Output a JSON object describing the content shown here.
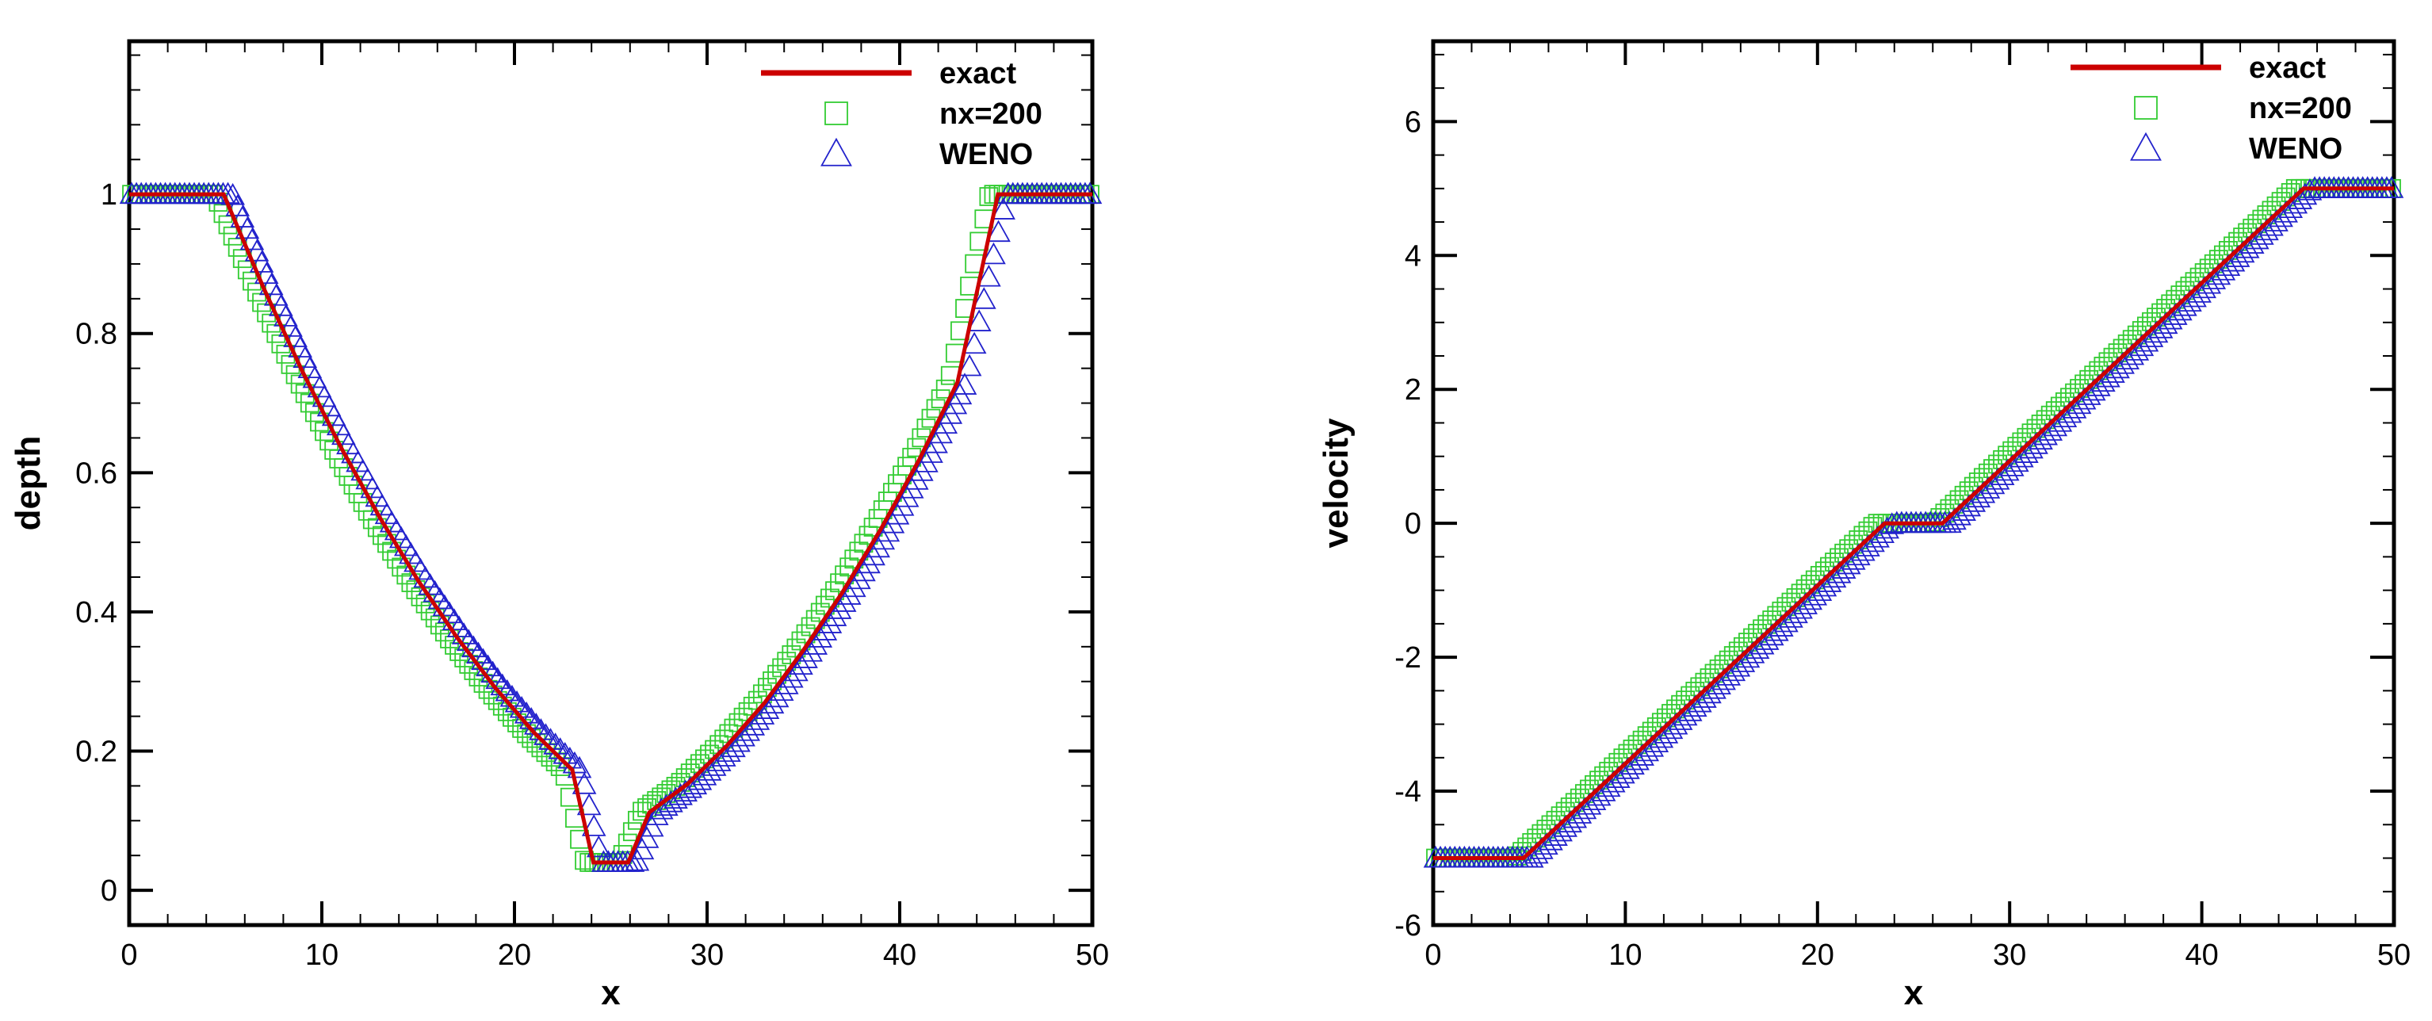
{
  "chart_data": [
    {
      "type": "line",
      "title": "",
      "xlabel": "x",
      "ylabel": "depth",
      "xlim": [
        0,
        50
      ],
      "ylim": [
        -0.05,
        1.22
      ],
      "xticks": [
        0,
        10,
        20,
        30,
        40,
        50
      ],
      "xtick_labels": [
        "0",
        "10",
        "20",
        "30",
        "40",
        "50"
      ],
      "yticks": [
        0,
        0.2,
        0.4,
        0.6,
        0.8,
        1
      ],
      "ytick_labels": [
        "0",
        "0.2",
        "0.4",
        "0.6",
        "0.8",
        "1"
      ],
      "yminor": 0.05,
      "xminor": 2,
      "grid": false,
      "legend": [
        "exact",
        "nx=200",
        "WENO"
      ],
      "series": [
        {
          "name": "exact",
          "marker": "line",
          "color": "#cc0000",
          "x": [
            0,
            4.9,
            7,
            9,
            11,
            13,
            15,
            17,
            19,
            21,
            23,
            24.1,
            25.9,
            27,
            29,
            31,
            33,
            35,
            37,
            39,
            41,
            43,
            45.1,
            50
          ],
          "y": [
            1.0,
            1.0,
            0.864,
            0.745,
            0.636,
            0.536,
            0.445,
            0.364,
            0.291,
            0.227,
            0.173,
            0.04,
            0.04,
            0.112,
            0.153,
            0.207,
            0.27,
            0.345,
            0.427,
            0.518,
            0.618,
            0.73,
            1.0,
            1.0
          ]
        },
        {
          "name": "nx=200",
          "marker": "square",
          "color": "#33cc33",
          "offset": -0.45,
          "count": 200,
          "x": [
            0,
            4.9,
            7,
            9,
            11,
            13,
            15,
            17,
            19,
            21,
            23,
            24.1,
            25.9,
            27,
            29,
            31,
            33,
            35,
            37,
            39,
            41,
            43,
            45.1,
            50
          ],
          "y": [
            1.0,
            1.0,
            0.864,
            0.745,
            0.636,
            0.536,
            0.445,
            0.364,
            0.291,
            0.227,
            0.173,
            0.04,
            0.04,
            0.112,
            0.153,
            0.207,
            0.27,
            0.345,
            0.427,
            0.518,
            0.618,
            0.73,
            1.0,
            1.0
          ]
        },
        {
          "name": "WENO",
          "marker": "triangle",
          "color": "#2222cc",
          "offset": 0.45,
          "count": 200,
          "x": [
            0,
            4.9,
            7,
            9,
            11,
            13,
            15,
            17,
            19,
            21,
            23,
            24.1,
            25.9,
            27,
            29,
            31,
            33,
            35,
            37,
            39,
            41,
            43,
            45.1,
            50
          ],
          "y": [
            1.0,
            1.0,
            0.864,
            0.745,
            0.636,
            0.536,
            0.445,
            0.364,
            0.291,
            0.227,
            0.173,
            0.04,
            0.04,
            0.112,
            0.153,
            0.207,
            0.27,
            0.345,
            0.427,
            0.518,
            0.618,
            0.73,
            1.0,
            1.0
          ]
        }
      ]
    },
    {
      "type": "line",
      "title": "",
      "xlabel": "x",
      "ylabel": "velocity",
      "xlim": [
        0,
        50
      ],
      "ylim": [
        -6,
        7.2
      ],
      "xticks": [
        0,
        10,
        20,
        30,
        40,
        50
      ],
      "xtick_labels": [
        "0",
        "10",
        "20",
        "30",
        "40",
        "50"
      ],
      "yticks": [
        -6,
        -4,
        -2,
        0,
        2,
        4,
        6
      ],
      "ytick_labels": [
        "-6",
        "-4",
        "-2",
        "0",
        "2",
        "4",
        "6"
      ],
      "yminor": 0.5,
      "xminor": 2,
      "grid": false,
      "legend": [
        "exact",
        "nx=200",
        "WENO"
      ],
      "series": [
        {
          "name": "exact",
          "marker": "line",
          "color": "#cc0000",
          "x": [
            0,
            4.7,
            23.5,
            26.5,
            45.3,
            50
          ],
          "y": [
            -5,
            -5,
            0,
            0,
            5,
            5
          ]
        },
        {
          "name": "nx=200",
          "marker": "square",
          "color": "#33cc33",
          "offset": -0.45,
          "count": 200,
          "x": [
            0,
            4.7,
            23.5,
            26.5,
            45.3,
            50
          ],
          "y": [
            -5,
            -5,
            0,
            0,
            5,
            5
          ]
        },
        {
          "name": "WENO",
          "marker": "triangle",
          "color": "#2222cc",
          "offset": 0.45,
          "count": 200,
          "x": [
            0,
            4.7,
            23.5,
            26.5,
            45.3,
            50
          ],
          "y": [
            -5,
            -5,
            0,
            0,
            5,
            5
          ]
        }
      ]
    }
  ]
}
